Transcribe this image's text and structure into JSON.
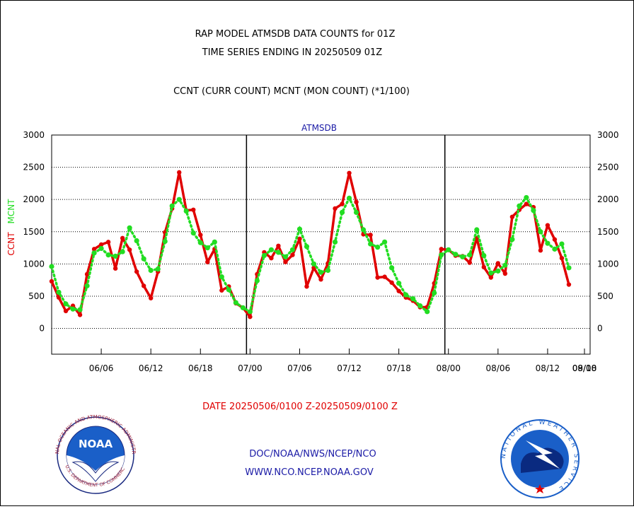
{
  "titles": {
    "line1": "RAP MODEL ATMSDB DATA COUNTS for 01Z",
    "line2": "TIME SERIES ENDING IN 20250509 01Z",
    "line3": "CCNT (CURR COUNT) MCNT (MON COUNT) (*1/100)"
  },
  "date_range": "DATE 20250506/0100 Z-20250509/0100 Z",
  "footer": {
    "line1": "DOC/NOAA/NWS/NCEP/NCO",
    "line2": "WWW.NCO.NCEP.NOAA.GOV"
  },
  "logos": {
    "noaa_text": "NOAA",
    "noaa_ring": "NATIONAL OCEANIC AND ATMOSPHERIC ADMINISTRATION",
    "noaa_ring_bottom": "U.S. DEPARTMENT OF COMMERCE",
    "nws_ring": "NATIONAL WEATHER SERVICE"
  },
  "colors": {
    "ccnt": "#e00000",
    "mcnt": "#22dd22",
    "title": "#000000",
    "dataset": "#1a1aa6",
    "date_range": "#e00000",
    "footer": "#1a1aa6"
  },
  "chart_data": {
    "type": "line",
    "title": "ATMSDB",
    "ylabel_left": "CCNT",
    "ylabel_right": "MCNT",
    "ylim": [
      -400,
      3000
    ],
    "yticks": [
      0,
      500,
      1000,
      1500,
      2000,
      2500,
      3000
    ],
    "xlim": [
      0,
      76
    ],
    "x_ticks": [
      {
        "x": 7,
        "label": "06/06"
      },
      {
        "x": 14,
        "label": "06/12"
      },
      {
        "x": 21,
        "label": "06/18"
      },
      {
        "x": 28,
        "label": "07/00"
      },
      {
        "x": 35,
        "label": "07/06"
      },
      {
        "x": 42,
        "label": "07/12"
      },
      {
        "x": 49,
        "label": "07/18"
      },
      {
        "x": 56,
        "label": "08/00"
      },
      {
        "x": 63,
        "label": "08/06"
      },
      {
        "x": 70,
        "label": "08/12"
      },
      {
        "x": 77,
        "label": "08/18"
      },
      {
        "x": 84,
        "label": "09/00"
      }
    ],
    "day_separators": [
      27.5,
      55.5,
      83.5
    ],
    "grid": true,
    "series": [
      {
        "name": "CCNT",
        "values": [
          730,
          480,
          270,
          350,
          210,
          840,
          1230,
          1300,
          1340,
          930,
          1400,
          1220,
          880,
          660,
          470,
          880,
          1490,
          1860,
          2420,
          1830,
          1840,
          1450,
          1030,
          1230,
          590,
          650,
          390,
          320,
          180,
          840,
          1180,
          1090,
          1280,
          1030,
          1140,
          1390,
          650,
          940,
          760,
          1010,
          1860,
          1930,
          2410,
          1960,
          1460,
          1450,
          790,
          800,
          710,
          580,
          480,
          430,
          330,
          330,
          700,
          1230,
          1220,
          1130,
          1120,
          1020,
          1400,
          950,
          790,
          1010,
          850,
          1730,
          1840,
          1930,
          1880,
          1210,
          1600,
          1380,
          1090,
          680
        ]
      },
      {
        "name": "MCNT",
        "values": [
          960,
          560,
          380,
          300,
          290,
          660,
          1170,
          1240,
          1140,
          1120,
          1190,
          1560,
          1360,
          1080,
          900,
          920,
          1350,
          1900,
          2000,
          1820,
          1480,
          1330,
          1250,
          1340,
          800,
          600,
          400,
          320,
          260,
          740,
          1130,
          1220,
          1180,
          1110,
          1220,
          1540,
          1270,
          1000,
          870,
          900,
          1340,
          1800,
          2020,
          1800,
          1530,
          1310,
          1260,
          1340,
          940,
          700,
          520,
          460,
          350,
          260,
          550,
          1140,
          1220,
          1150,
          1110,
          1140,
          1530,
          1130,
          860,
          890,
          980,
          1380,
          1900,
          2030,
          1830,
          1500,
          1320,
          1230,
          1310,
          940
        ]
      }
    ]
  }
}
